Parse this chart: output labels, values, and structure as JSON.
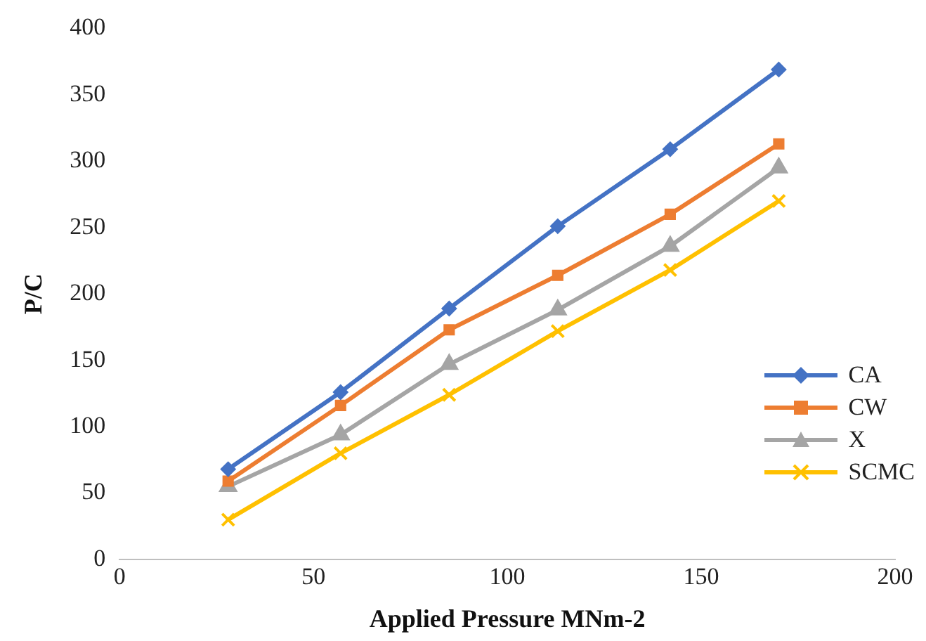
{
  "chart_data": {
    "type": "line",
    "xlabel": "Applied Pressure MNm-2",
    "ylabel": "P/C",
    "x": [
      28,
      57,
      85,
      113,
      142,
      170
    ],
    "xlim": [
      0,
      200
    ],
    "xticks": [
      0,
      50,
      100,
      150,
      200
    ],
    "ylim": [
      0,
      400
    ],
    "yticks": [
      0,
      50,
      100,
      150,
      200,
      250,
      300,
      350,
      400
    ],
    "grid": false,
    "legend": "right",
    "line_style": "solid",
    "series": [
      {
        "name": "CA",
        "color": "#4472c4",
        "marker": "diamond",
        "values": [
          68,
          126,
          189,
          251,
          309,
          369
        ]
      },
      {
        "name": "CW",
        "color": "#ed7d31",
        "marker": "square",
        "values": [
          59,
          116,
          173,
          214,
          260,
          313
        ]
      },
      {
        "name": "X",
        "color": "#a5a5a5",
        "marker": "triangle",
        "values": [
          55,
          94,
          147,
          188,
          236,
          295
        ]
      },
      {
        "name": "SCMC",
        "color": "#ffc000",
        "marker": "cross",
        "values": [
          30,
          80,
          124,
          172,
          218,
          270
        ]
      }
    ]
  }
}
